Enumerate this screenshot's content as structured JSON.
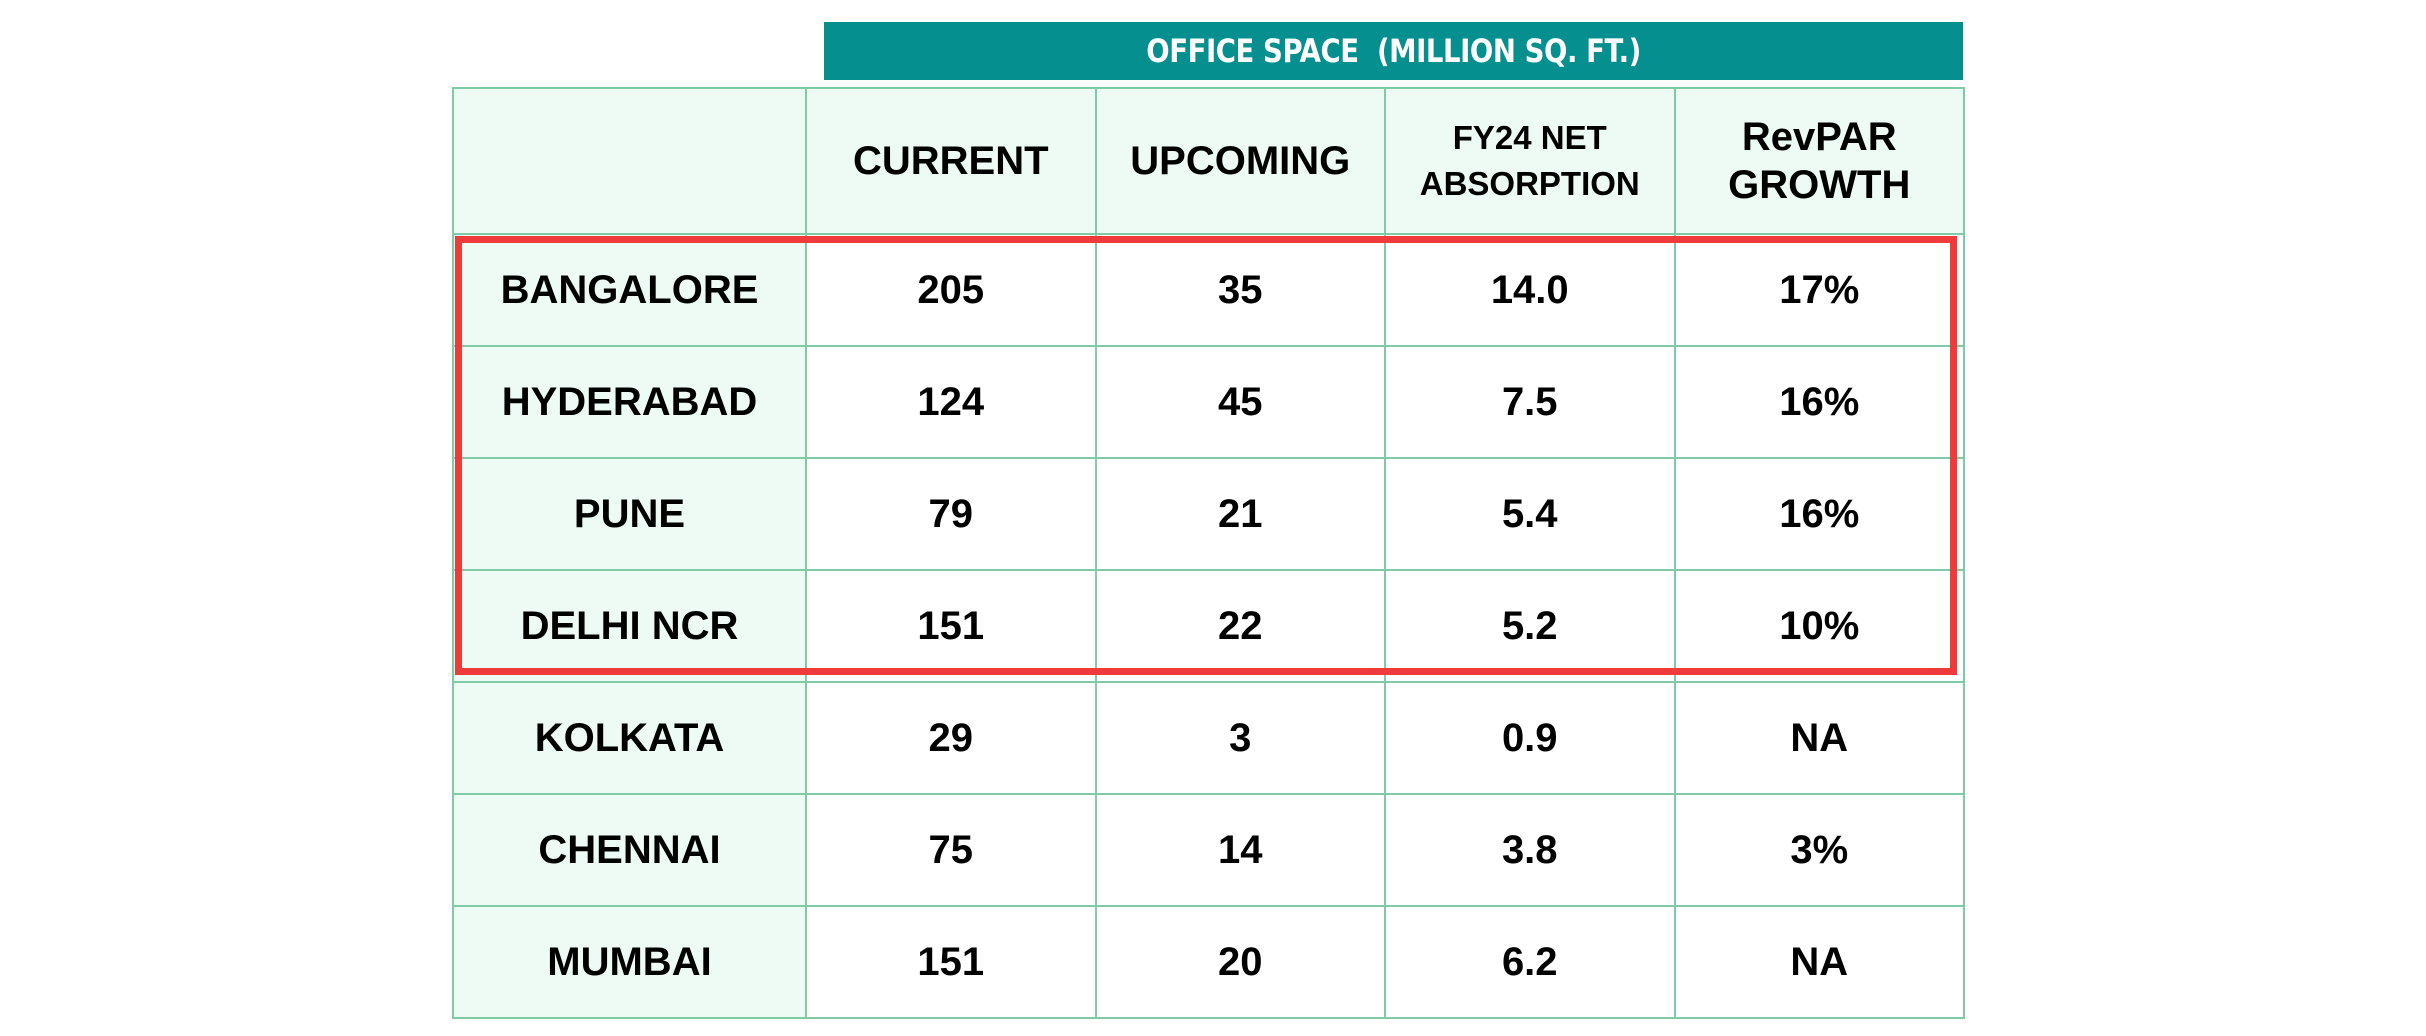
{
  "banner": "OFFICE SPACE  (MILLION SQ. FT.)",
  "headers": [
    "",
    "CURRENT",
    "UPCOMING",
    "FY24 NET ABSORPTION",
    "RevPAR GROWTH"
  ],
  "header_lines": {
    "col3": [
      "FY24 NET",
      "ABSORPTION"
    ],
    "col4": [
      "RevPAR",
      "GROWTH"
    ]
  },
  "highlight_color": "#ef3b3b",
  "banner_color": "#05908f",
  "chart_data": {
    "type": "table",
    "title": "OFFICE SPACE  (MILLION SQ. FT.)",
    "columns": [
      "CURRENT",
      "UPCOMING",
      "FY24 NET ABSORPTION",
      "RevPAR GROWTH"
    ],
    "highlighted_rows": [
      "BANGALORE",
      "HYDERABAD",
      "PUNE",
      "DELHI NCR"
    ],
    "rows": [
      {
        "city": "BANGALORE",
        "current": "205",
        "upcoming": "35",
        "absorption": "14.0",
        "revpar": "17%"
      },
      {
        "city": "HYDERABAD",
        "current": "124",
        "upcoming": "45",
        "absorption": "7.5",
        "revpar": "16%"
      },
      {
        "city": "PUNE",
        "current": "79",
        "upcoming": "21",
        "absorption": "5.4",
        "revpar": "16%"
      },
      {
        "city": "DELHI NCR",
        "current": "151",
        "upcoming": "22",
        "absorption": "5.2",
        "revpar": "10%"
      },
      {
        "city": "KOLKATA",
        "current": "29",
        "upcoming": "3",
        "absorption": "0.9",
        "revpar": "NA"
      },
      {
        "city": "CHENNAI",
        "current": "75",
        "upcoming": "14",
        "absorption": "3.8",
        "revpar": "3%"
      },
      {
        "city": "MUMBAI",
        "current": "151",
        "upcoming": "20",
        "absorption": "6.2",
        "revpar": "NA"
      }
    ]
  }
}
